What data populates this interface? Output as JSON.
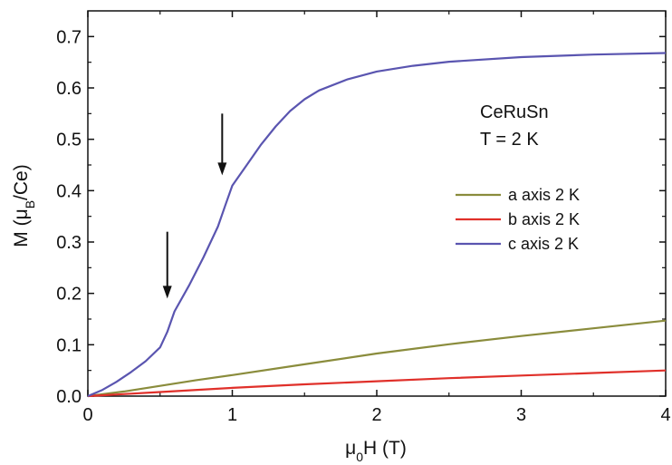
{
  "chart_data": {
    "type": "line",
    "title": "",
    "xlabel": {
      "pre": "μ",
      "sub": "0",
      "post": "H (T)"
    },
    "ylabel": {
      "pre": "M (μ",
      "sub": "B",
      "post": "/Ce)"
    },
    "xlim": [
      0,
      4
    ],
    "ylim": [
      0,
      0.75
    ],
    "xticks": [
      0,
      1,
      2,
      3,
      4
    ],
    "yticks": [
      0.0,
      0.1,
      0.2,
      0.3,
      0.4,
      0.5,
      0.6,
      0.7
    ],
    "xtick_labels": [
      "0",
      "1",
      "2",
      "3",
      "4"
    ],
    "ytick_labels": [
      "0.0",
      "0.1",
      "0.2",
      "0.3",
      "0.4",
      "0.5",
      "0.6",
      "0.7"
    ],
    "grid": false,
    "legend_position": "right",
    "annotation_lines": [
      "CeRuSn",
      "T = 2 K"
    ],
    "arrows": [
      {
        "x": 0.55,
        "y_top": 0.32,
        "y_tip": 0.19
      },
      {
        "x": 0.93,
        "y_top": 0.55,
        "y_tip": 0.43
      }
    ],
    "series": [
      {
        "name": "a axis 2 K",
        "color": "#8a8c3c",
        "x": [
          0,
          0.25,
          0.5,
          0.75,
          1.0,
          1.5,
          2.0,
          2.5,
          3.0,
          3.5,
          4.0
        ],
        "y": [
          0,
          0.009,
          0.02,
          0.031,
          0.041,
          0.062,
          0.083,
          0.101,
          0.117,
          0.132,
          0.147
        ]
      },
      {
        "name": "b axis 2 K",
        "color": "#e0302a",
        "x": [
          0,
          0.5,
          1.0,
          1.5,
          2.0,
          2.5,
          3.0,
          3.5,
          4.0
        ],
        "y": [
          0,
          0.008,
          0.016,
          0.023,
          0.029,
          0.035,
          0.04,
          0.045,
          0.05
        ]
      },
      {
        "name": "c axis 2 K",
        "color": "#5a55b0",
        "x": [
          0,
          0.1,
          0.2,
          0.3,
          0.4,
          0.5,
          0.55,
          0.6,
          0.7,
          0.8,
          0.9,
          0.95,
          1.0,
          1.1,
          1.2,
          1.3,
          1.4,
          1.5,
          1.6,
          1.8,
          2.0,
          2.25,
          2.5,
          3.0,
          3.5,
          4.0
        ],
        "y": [
          0,
          0.012,
          0.028,
          0.047,
          0.068,
          0.095,
          0.125,
          0.165,
          0.215,
          0.27,
          0.33,
          0.37,
          0.41,
          0.45,
          0.49,
          0.525,
          0.555,
          0.578,
          0.595,
          0.617,
          0.632,
          0.643,
          0.651,
          0.66,
          0.665,
          0.668
        ]
      }
    ]
  }
}
